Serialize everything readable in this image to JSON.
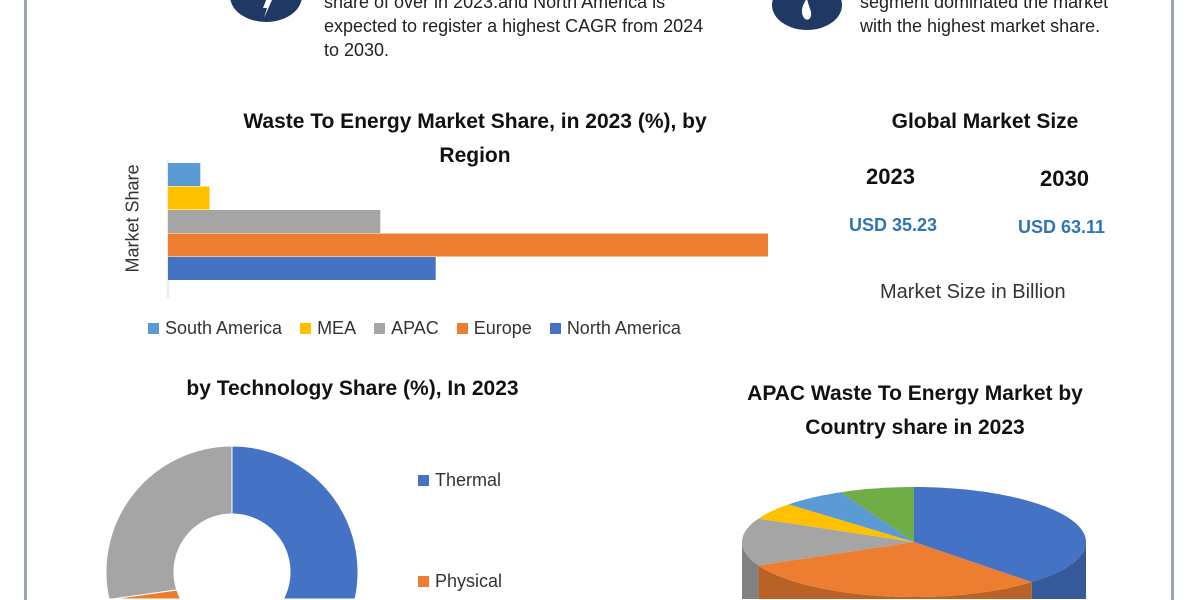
{
  "top_left_text": [
    "share of over in 2023.and North America is",
    "expected to register a highest CAGR from 2024",
    "to 2030."
  ],
  "top_right_text": [
    "segment dominated the market",
    "with the highest market share."
  ],
  "icons": {
    "left": "lightning-icon",
    "right": "flame-icon"
  },
  "market_size": {
    "title": "Global Market Size",
    "year_1": "2023",
    "year_2": "2030",
    "value_1": "USD 35.23",
    "value_2": "USD 63.11",
    "unit_note": "Market Size in Billion"
  },
  "chart_data": [
    {
      "type": "bar",
      "orientation": "horizontal",
      "title_line1": "Waste To Energy Market Share, in 2023 (%), by",
      "title_line2": "Region",
      "xlabel": "",
      "ylabel": "Market Share",
      "categories": [
        "South America",
        "MEA",
        "APAC",
        "Europe",
        "North America"
      ],
      "values": [
        2.8,
        3.6,
        18.4,
        52.0,
        23.2
      ],
      "colors": [
        "#5b9bd5",
        "#ffc000",
        "#a5a5a5",
        "#ed7d31",
        "#4472c4"
      ],
      "xlim": [
        0,
        52
      ],
      "legend_position": "bottom",
      "grid": false
    },
    {
      "type": "pie",
      "variant": "donut",
      "title": "by Technology Share (%), In 2023",
      "labels": [
        "Thermal",
        "Physical",
        ""
      ],
      "values": [
        56,
        14,
        30
      ],
      "colors": [
        "#4472c4",
        "#ed7d31",
        "#a5a5a5"
      ],
      "legend_position": "right"
    },
    {
      "type": "pie",
      "variant": "3d",
      "title_line1": "APAC Waste To Energy Market by",
      "title_line2": "Country share in 2023",
      "values": [
        38,
        30,
        14,
        5,
        6,
        7
      ],
      "colors": [
        "#4472c4",
        "#ed7d31",
        "#a5a5a5",
        "#ffc000",
        "#5b9bd5",
        "#70ad47"
      ]
    }
  ]
}
